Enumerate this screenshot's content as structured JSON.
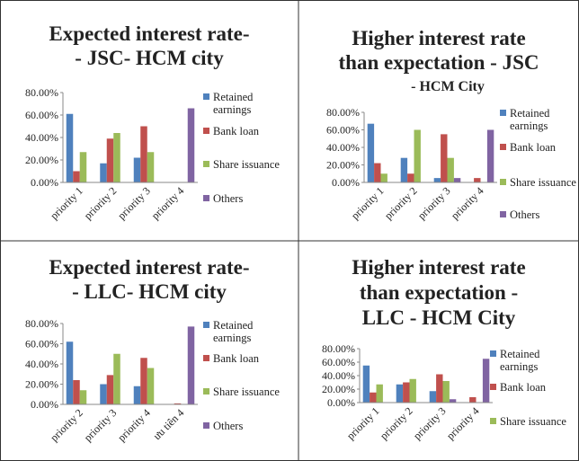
{
  "chart_data": [
    {
      "type": "bar",
      "title": [
        "Expected interest rate-",
        "- JSC- HCM city"
      ],
      "categories": [
        "priority 1",
        "priority 2",
        "priority 3",
        "priority 4"
      ],
      "ylim": [
        0,
        80
      ],
      "yticks": [
        {
          "value": 0,
          "label": "0.00%"
        },
        {
          "value": 20,
          "label": "20.00%"
        },
        {
          "value": 40,
          "label": "40.00%"
        },
        {
          "value": 60,
          "label": "60.00%"
        },
        {
          "value": 80,
          "label": "80.00%"
        }
      ],
      "series": [
        {
          "name": "Retained earnings",
          "color": "#4f81bd",
          "values": [
            61,
            17,
            22,
            0
          ]
        },
        {
          "name": "Bank loan",
          "color": "#c0504d",
          "values": [
            10,
            39,
            50,
            0
          ]
        },
        {
          "name": "Share issuance",
          "color": "#9bbb59",
          "values": [
            27,
            44,
            27,
            0
          ]
        },
        {
          "name": "Others",
          "color": "#8064a2",
          "values": [
            0,
            0,
            0,
            66
          ]
        }
      ]
    },
    {
      "type": "bar",
      "title": [
        "Higher interest rate",
        "than expectation - JSC"
      ],
      "subtitle": "- HCM City",
      "categories": [
        "priority 1",
        "priority 2",
        "priority 3",
        "priority 4"
      ],
      "ylim": [
        0,
        80
      ],
      "yticks": [
        {
          "value": 0,
          "label": "0.00%"
        },
        {
          "value": 20,
          "label": "20.00%"
        },
        {
          "value": 40,
          "label": "40.00%"
        },
        {
          "value": 60,
          "label": "60.00%"
        },
        {
          "value": 80,
          "label": "80.00%"
        }
      ],
      "series": [
        {
          "name": "Retained earnings",
          "color": "#4f81bd",
          "values": [
            67,
            28,
            5,
            0
          ]
        },
        {
          "name": "Bank loan",
          "color": "#c0504d",
          "values": [
            22,
            10,
            55,
            5
          ]
        },
        {
          "name": "Share issuance",
          "color": "#9bbb59",
          "values": [
            10,
            60,
            28,
            0
          ]
        },
        {
          "name": "Others",
          "color": "#8064a2",
          "values": [
            0,
            0,
            5,
            60
          ]
        }
      ]
    },
    {
      "type": "bar",
      "title": [
        "Expected interest rate-",
        "- LLC- HCM city"
      ],
      "categories": [
        "priority 2",
        "priority 3",
        "priority 4",
        "ưu tiên 4"
      ],
      "ylim": [
        0,
        80
      ],
      "yticks": [
        {
          "value": 0,
          "label": "0.00%"
        },
        {
          "value": 20,
          "label": "20.00%"
        },
        {
          "value": 40,
          "label": "40.00%"
        },
        {
          "value": 60,
          "label": "60.00%"
        },
        {
          "value": 80,
          "label": "80.00%"
        }
      ],
      "series": [
        {
          "name": "Retained earnings",
          "color": "#4f81bd",
          "values": [
            62,
            20,
            18,
            0
          ]
        },
        {
          "name": "Bank loan",
          "color": "#c0504d",
          "values": [
            24,
            29,
            46,
            1
          ]
        },
        {
          "name": "Share issuance",
          "color": "#9bbb59",
          "values": [
            14,
            50,
            36,
            0
          ]
        },
        {
          "name": "Others",
          "color": "#8064a2",
          "values": [
            0,
            0,
            0,
            77
          ]
        }
      ]
    },
    {
      "type": "bar",
      "title": [
        "Higher interest rate",
        "than expectation -",
        "LLC - HCM City"
      ],
      "categories": [
        "priority 1",
        "priority 2",
        "priority 3",
        "priority 4"
      ],
      "ylim": [
        0,
        80
      ],
      "yticks": [
        {
          "value": 0,
          "label": "0.00%"
        },
        {
          "value": 20,
          "label": "20.00%"
        },
        {
          "value": 40,
          "label": "40.00%"
        },
        {
          "value": 60,
          "label": "60.00%"
        },
        {
          "value": 80,
          "label": "80.00%"
        }
      ],
      "series": [
        {
          "name": "Retained earnings",
          "color": "#4f81bd",
          "values": [
            55,
            27,
            17,
            0
          ]
        },
        {
          "name": "Bank loan",
          "color": "#c0504d",
          "values": [
            15,
            30,
            42,
            8
          ]
        },
        {
          "name": "Share issuance",
          "color": "#9bbb59",
          "values": [
            27,
            35,
            32,
            0
          ]
        },
        {
          "color": "#8064a2",
          "values": [
            0,
            0,
            5,
            65
          ]
        }
      ]
    }
  ]
}
